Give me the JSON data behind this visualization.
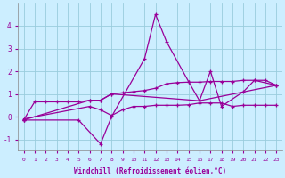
{
  "xlabel": "Windchill (Refroidissement éolien,°C)",
  "background_color": "#cceeff",
  "grid_color": "#99ccdd",
  "line_color": "#990099",
  "xlim": [
    -0.5,
    23.5
  ],
  "ylim": [
    -1.5,
    5.0
  ],
  "xticks": [
    0,
    1,
    2,
    3,
    4,
    5,
    6,
    7,
    8,
    9,
    10,
    11,
    12,
    13,
    14,
    15,
    16,
    17,
    18,
    19,
    20,
    21,
    22,
    23
  ],
  "yticks": [
    -1,
    0,
    1,
    2,
    3,
    4
  ],
  "series": [
    {
      "x": [
        0,
        1,
        2,
        3,
        4,
        5,
        6,
        7,
        8,
        9,
        10,
        11,
        12,
        13,
        14,
        15,
        16,
        17,
        18,
        19,
        20,
        21,
        22,
        23
      ],
      "y": [
        -0.15,
        0.65,
        0.65,
        0.65,
        0.65,
        0.65,
        0.72,
        0.72,
        1.0,
        1.05,
        1.1,
        1.15,
        1.25,
        1.45,
        1.5,
        1.52,
        1.52,
        1.55,
        1.55,
        1.55,
        1.6,
        1.6,
        1.6,
        1.38
      ]
    },
    {
      "x": [
        0,
        5,
        7,
        8,
        11,
        12,
        13,
        15,
        16,
        17,
        18,
        20,
        21,
        23
      ],
      "y": [
        -0.15,
        -0.15,
        -1.2,
        0.0,
        2.55,
        4.5,
        3.3,
        1.55,
        0.7,
        2.0,
        0.45,
        1.1,
        1.6,
        1.38
      ]
    },
    {
      "x": [
        0,
        6,
        7,
        8,
        16,
        23
      ],
      "y": [
        -0.15,
        0.72,
        0.72,
        1.0,
        0.7,
        1.38
      ]
    },
    {
      "x": [
        0,
        6,
        7,
        8,
        9,
        10,
        11,
        12,
        13,
        14,
        15,
        16,
        17,
        18,
        19,
        20,
        21,
        22,
        23
      ],
      "y": [
        -0.1,
        0.45,
        0.3,
        0.05,
        0.3,
        0.45,
        0.45,
        0.5,
        0.5,
        0.5,
        0.52,
        0.6,
        0.6,
        0.6,
        0.45,
        0.5,
        0.5,
        0.5,
        0.5
      ]
    }
  ]
}
